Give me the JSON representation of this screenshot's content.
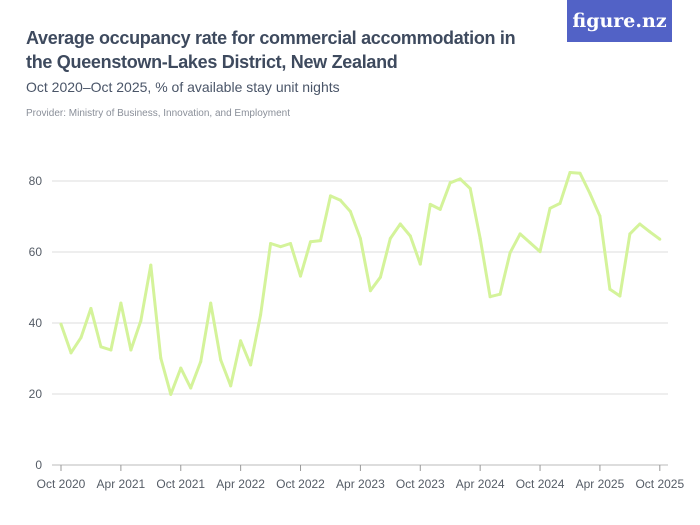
{
  "header": {
    "title": "Average occupancy rate for commercial accommodation in the Queenstown-Lakes District, New Zealand",
    "subtitle": "Oct 2020–Oct 2025, % of available stay unit nights",
    "provider": "Provider: Ministry of Business, Innovation, and Employment",
    "logo": "figure.nz"
  },
  "colors": {
    "line": "#d4f39a",
    "logo_bg": "#5262c6",
    "grid": "#dcdcdc"
  },
  "chart_data": {
    "type": "line",
    "title": "Average occupancy rate for commercial accommodation in the Queenstown-Lakes District, New Zealand",
    "start": "Oct 2020",
    "frequency": "monthly",
    "ylim": [
      0,
      85
    ],
    "yticks": [
      0,
      20,
      40,
      60,
      80
    ],
    "xtick_labels": [
      "Oct 2020",
      "Apr 2021",
      "Oct 2021",
      "Apr 2022",
      "Oct 2022",
      "Apr 2023",
      "Oct 2023",
      "Apr 2024",
      "Oct 2024",
      "Apr 2025",
      "Oct 2025"
    ],
    "grid": true,
    "values": [
      39.7,
      31.6,
      35.9,
      44.1,
      33.3,
      32.4,
      45.6,
      32.4,
      40.6,
      56.3,
      30.1,
      19.9,
      27.3,
      21.7,
      29.1,
      45.6,
      29.6,
      22.3,
      35.0,
      28.2,
      42.3,
      62.4,
      61.5,
      62.4,
      53.2,
      62.9,
      63.2,
      75.8,
      74.6,
      71.4,
      63.8,
      49.1,
      52.9,
      63.8,
      67.9,
      64.5,
      56.6,
      73.4,
      72.0,
      79.5,
      80.6,
      77.9,
      63.8,
      47.4,
      48.1,
      59.8,
      65.1,
      62.6,
      60.1,
      72.3,
      73.7,
      82.4,
      82.2,
      76.5,
      70.1,
      49.5,
      47.6,
      65.1,
      67.9,
      65.7,
      63.6
    ]
  }
}
